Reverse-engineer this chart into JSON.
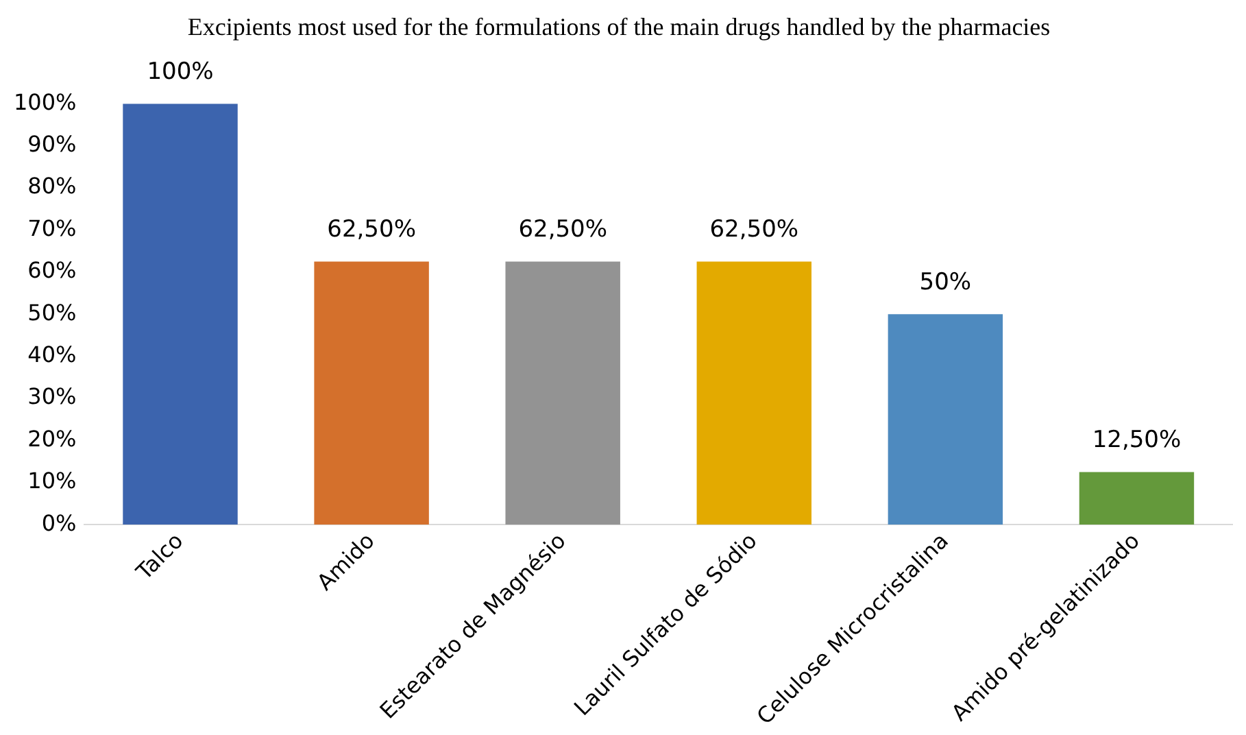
{
  "chart_data": {
    "type": "bar",
    "title": "Excipients most used for the formulations of the main drugs handled by the pharmacies",
    "categories": [
      "Talco",
      "Amido",
      "Estearato de Magnésio",
      "Lauril Sulfato de Sódio",
      "Celulose Microcristalina",
      "Amido pré-gelatinizado"
    ],
    "values": [
      100,
      62.5,
      62.5,
      62.5,
      50,
      12.5
    ],
    "colors": [
      "#3c64ae",
      "#d4702c",
      "#939393",
      "#e3aa00",
      "#4e8abf",
      "#64993b"
    ],
    "value_labels": [
      "100%",
      "62,50%",
      "62,50%",
      "62,50%",
      "50%",
      "12,50%"
    ],
    "ylim": [
      0,
      100
    ],
    "yticks": [
      {
        "value": 0,
        "label": "0%"
      },
      {
        "value": 10,
        "label": "10%"
      },
      {
        "value": 20,
        "label": "20%"
      },
      {
        "value": 30,
        "label": "30%"
      },
      {
        "value": 40,
        "label": "40%"
      },
      {
        "value": 50,
        "label": "50%"
      },
      {
        "value": 60,
        "label": "60%"
      },
      {
        "value": 70,
        "label": "70%"
      },
      {
        "value": 80,
        "label": "80%"
      },
      {
        "value": 90,
        "label": "90%"
      },
      {
        "value": 100,
        "label": "100%"
      }
    ],
    "grid": false,
    "legend": false
  }
}
